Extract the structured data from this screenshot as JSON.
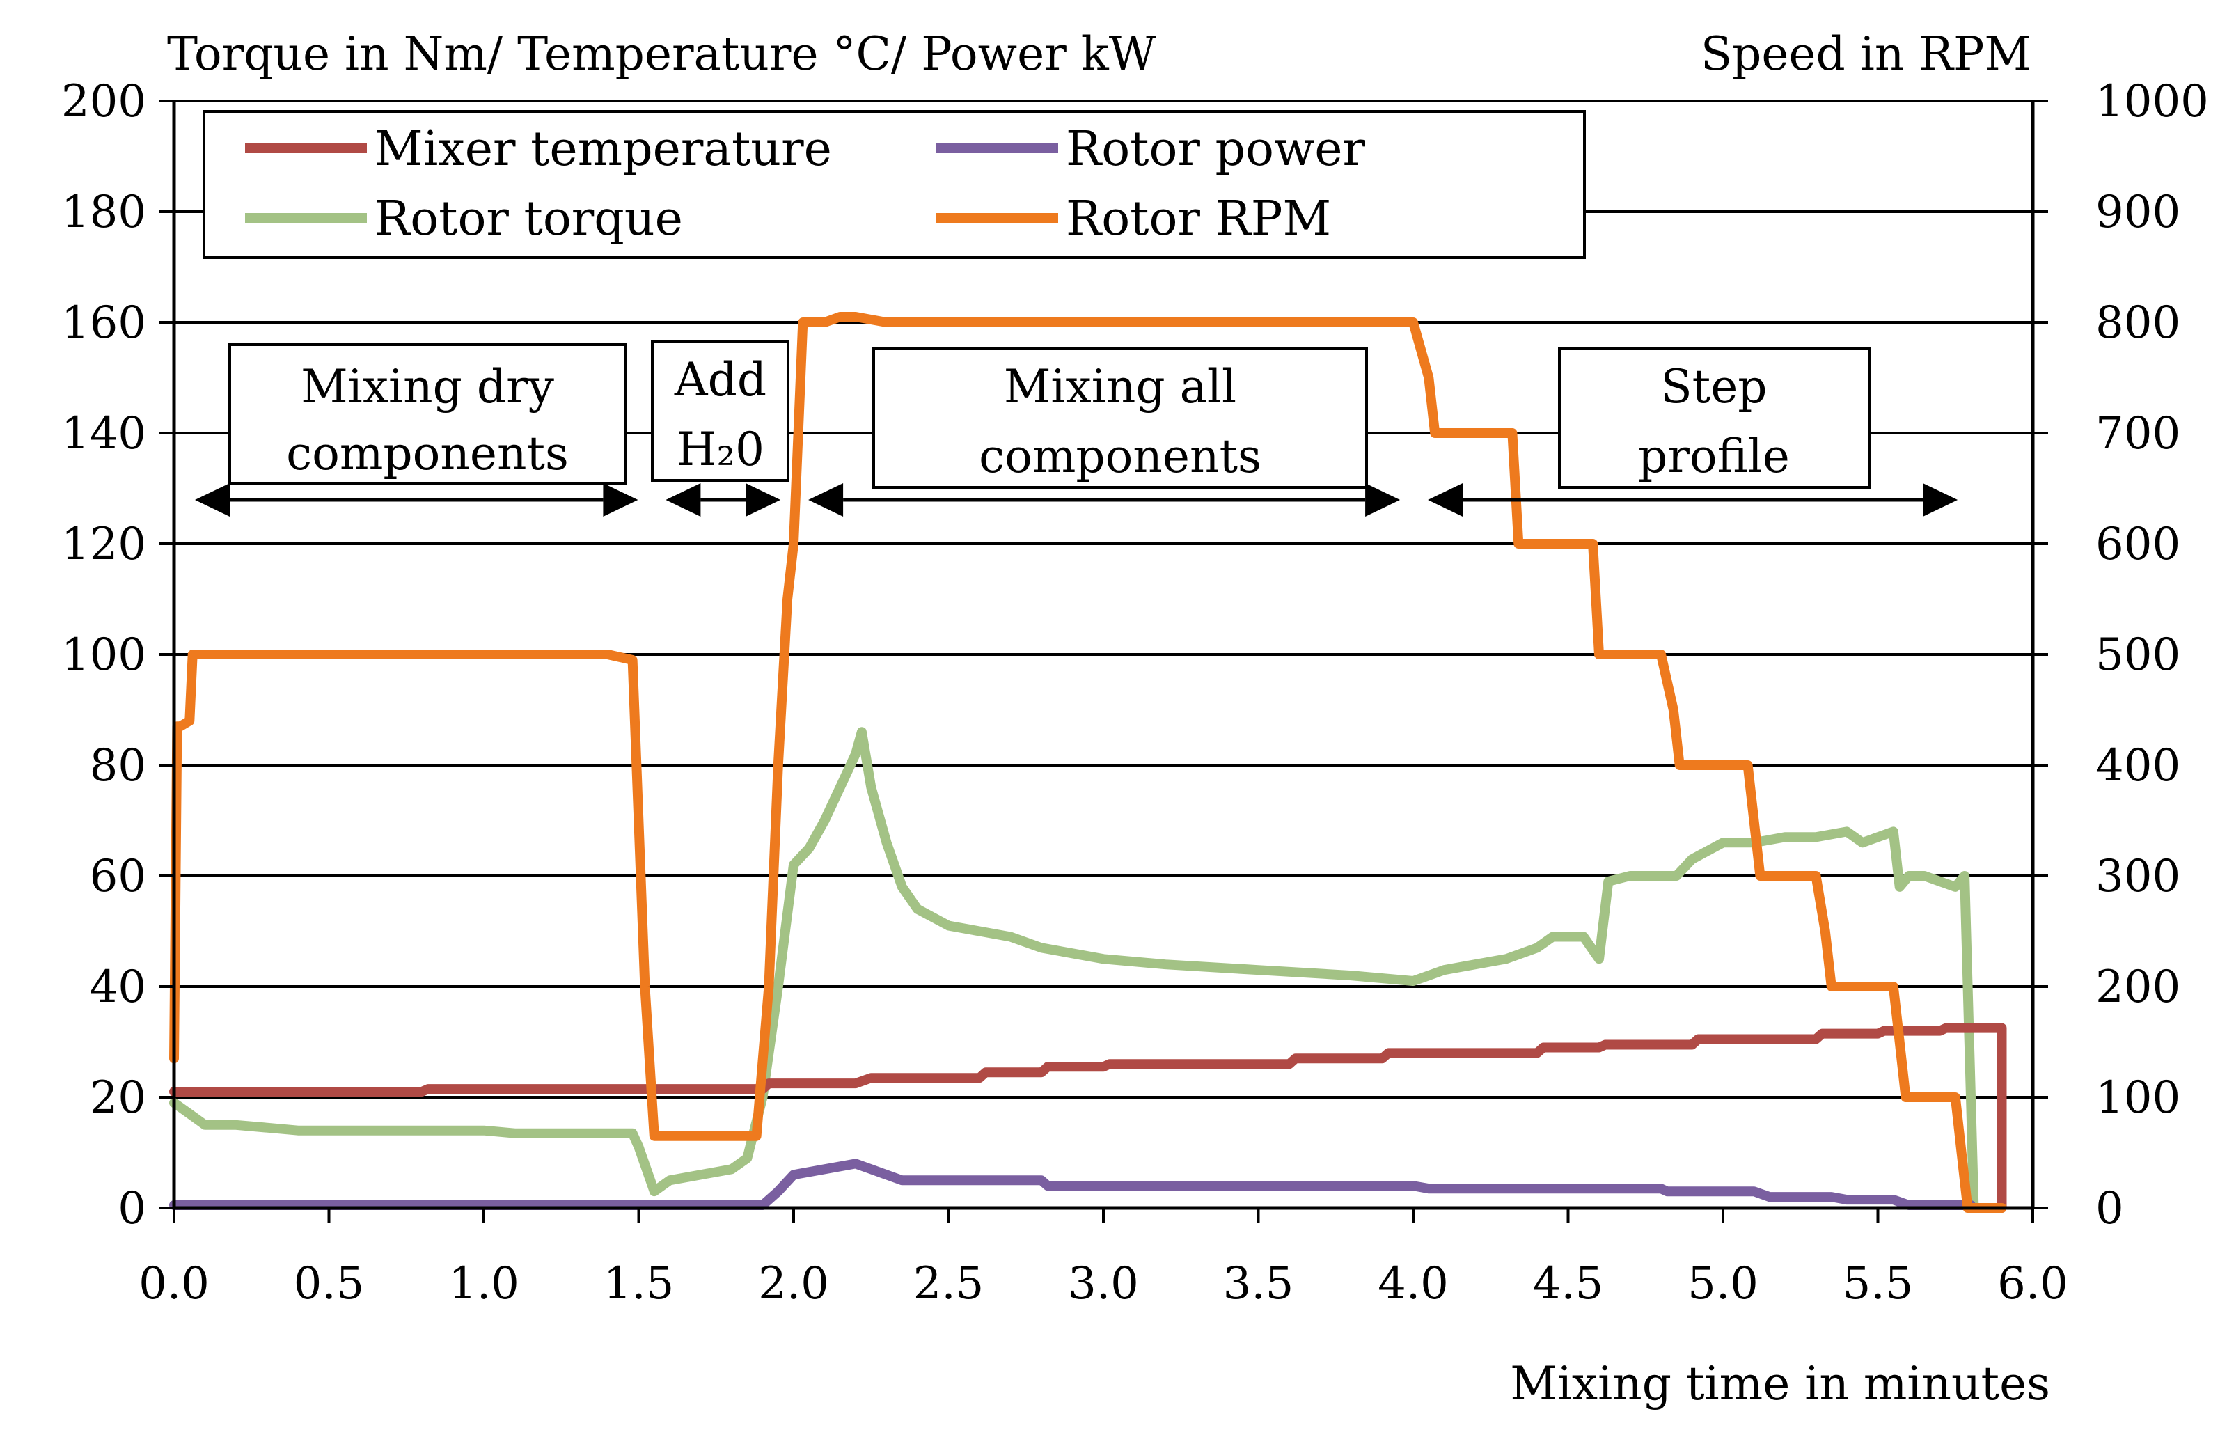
{
  "chart_data": {
    "type": "line",
    "title": "",
    "xlabel": "Mixing time in minutes",
    "ylabel_left": "Torque in Nm/ Temperature °C/ Power kW",
    "ylabel_right": "Speed in RPM",
    "xlim": [
      0,
      6
    ],
    "ylim_left": [
      0,
      200
    ],
    "ylim_right": [
      0,
      1000
    ],
    "grid": true,
    "legend_position": "top-left",
    "x_ticks": [
      "0.0",
      "0.5",
      "1.0",
      "1.5",
      "2.0",
      "2.5",
      "3.0",
      "3.5",
      "4.0",
      "4.5",
      "5.0",
      "5.5",
      "6.0"
    ],
    "y_ticks_left": [
      "0",
      "20",
      "40",
      "60",
      "80",
      "100",
      "120",
      "140",
      "160",
      "180",
      "200"
    ],
    "y_ticks_right": [
      "0",
      "100",
      "200",
      "300",
      "400",
      "500",
      "600",
      "700",
      "800",
      "900",
      "1000"
    ],
    "series": [
      {
        "name": "Mixer temperature",
        "axis": "left",
        "color": "#b04a45",
        "x": [
          0,
          0.8,
          0.82,
          1.5,
          1.9,
          1.92,
          2.2,
          2.25,
          2.6,
          2.62,
          2.8,
          2.82,
          3.0,
          3.02,
          3.6,
          3.62,
          3.9,
          3.92,
          4.4,
          4.42,
          4.6,
          4.62,
          4.9,
          4.92,
          5.3,
          5.32,
          5.5,
          5.52,
          5.7,
          5.72,
          5.88,
          5.9,
          5.9
        ],
        "y": [
          21,
          21,
          21.5,
          21.5,
          21.5,
          22.5,
          22.5,
          23.5,
          23.5,
          24.5,
          24.5,
          25.5,
          25.5,
          26,
          26,
          27,
          27,
          28,
          28,
          29,
          29,
          29.5,
          29.5,
          30.5,
          30.5,
          31.5,
          31.5,
          32,
          32,
          32.5,
          32.5,
          32.5,
          0
        ]
      },
      {
        "name": "Rotor power",
        "axis": "left",
        "color": "#7a5fa0",
        "x": [
          0,
          1.9,
          1.95,
          2.0,
          2.1,
          2.2,
          2.25,
          2.3,
          2.35,
          2.8,
          2.82,
          4.0,
          4.05,
          4.8,
          4.82,
          5.1,
          5.15,
          5.35,
          5.4,
          5.55,
          5.6,
          5.8
        ],
        "y": [
          0.5,
          0.5,
          3,
          6,
          7,
          8,
          7,
          6,
          5,
          5,
          4,
          4,
          3.5,
          3.5,
          3,
          3,
          2,
          2,
          1.5,
          1.5,
          0.5,
          0.5
        ]
      },
      {
        "name": "Rotor torque",
        "axis": "left",
        "color": "#a3c285",
        "x": [
          0,
          0.05,
          0.1,
          0.2,
          0.3,
          0.4,
          0.6,
          0.9,
          1.0,
          1.1,
          1.3,
          1.48,
          1.5,
          1.55,
          1.6,
          1.7,
          1.8,
          1.85,
          1.9,
          1.95,
          2.0,
          2.05,
          2.1,
          2.15,
          2.2,
          2.22,
          2.25,
          2.3,
          2.35,
          2.4,
          2.5,
          2.6,
          2.7,
          2.8,
          2.9,
          3.0,
          3.2,
          3.5,
          3.8,
          4.0,
          4.05,
          4.1,
          4.2,
          4.3,
          4.4,
          4.45,
          4.55,
          4.6,
          4.63,
          4.7,
          4.8,
          4.85,
          4.9,
          5.0,
          5.1,
          5.2,
          5.3,
          5.4,
          5.45,
          5.5,
          5.55,
          5.57,
          5.6,
          5.65,
          5.7,
          5.75,
          5.78,
          5.8,
          5.81
        ],
        "y": [
          19,
          17,
          15,
          15,
          14.5,
          14,
          14,
          14,
          14,
          13.5,
          13.5,
          13.5,
          11,
          3,
          5,
          6,
          7,
          9,
          20,
          40,
          62,
          65,
          70,
          76,
          82,
          86,
          76,
          66,
          58,
          54,
          51,
          50,
          49,
          47,
          46,
          45,
          44,
          43,
          42,
          41,
          42,
          43,
          44,
          45,
          47,
          49,
          49,
          45,
          59,
          60,
          60,
          60,
          63,
          66,
          66,
          67,
          67,
          68,
          66,
          67,
          68,
          58,
          60,
          60,
          59,
          58,
          60,
          20,
          0
        ]
      },
      {
        "name": "Rotor RPM",
        "axis": "right",
        "color": "#ee7a1e",
        "x": [
          0,
          0.01,
          0.02,
          0.05,
          0.06,
          0.1,
          1.4,
          1.48,
          1.52,
          1.55,
          1.6,
          1.85,
          1.88,
          1.92,
          1.95,
          1.98,
          2.0,
          2.03,
          2.1,
          2.15,
          2.2,
          2.3,
          2.5,
          3.0,
          3.5,
          4.0,
          4.05,
          4.07,
          4.2,
          4.32,
          4.34,
          4.45,
          4.58,
          4.6,
          4.8,
          4.84,
          4.86,
          5.08,
          5.1,
          5.12,
          5.3,
          5.33,
          5.35,
          5.55,
          5.57,
          5.59,
          5.75,
          5.77,
          5.79,
          5.9
        ],
        "y": [
          135,
          435,
          435,
          440,
          500,
          500,
          500,
          495,
          200,
          65,
          65,
          65,
          65,
          200,
          400,
          550,
          600,
          800,
          800,
          805,
          805,
          800,
          800,
          800,
          800,
          800,
          750,
          700,
          700,
          700,
          600,
          600,
          600,
          500,
          500,
          450,
          400,
          400,
          350,
          300,
          300,
          250,
          200,
          200,
          150,
          100,
          100,
          50,
          0,
          0
        ]
      }
    ],
    "annotations": [
      {
        "label_line1": "Mixing dry",
        "label_line2": "components",
        "x_start": 0.0,
        "x_end": 1.52
      },
      {
        "label_line1": "Add",
        "label_line2": "H₂0",
        "x_start": 1.52,
        "x_end": 1.98
      },
      {
        "label_line1": "Mixing all",
        "label_line2": "components",
        "x_start": 1.98,
        "x_end": 3.98
      },
      {
        "label_line1": "Step",
        "label_line2": "profile",
        "x_start": 3.98,
        "x_end": 5.78
      }
    ]
  }
}
